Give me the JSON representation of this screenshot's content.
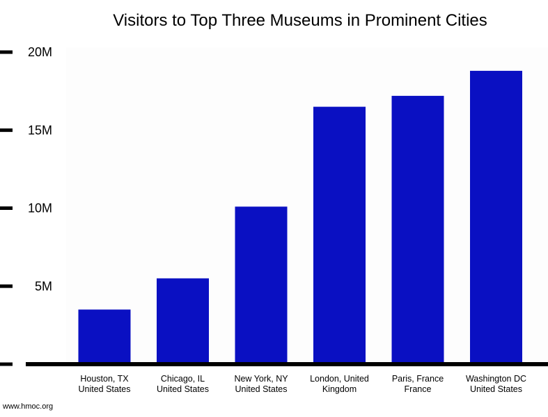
{
  "chart_data": {
    "type": "bar",
    "title": "Visitors to Top Three Museums in Prominent Cities",
    "categories": [
      [
        "Houston, TX",
        "United States"
      ],
      [
        "Chicago, IL",
        "United States"
      ],
      [
        "New York, NY",
        "United States"
      ],
      [
        "London, United",
        "Kingdom"
      ],
      [
        "Paris, France",
        "France"
      ],
      [
        "Washington DC",
        "United States"
      ]
    ],
    "values": [
      3500000,
      5500000,
      10100000,
      16500000,
      17200000,
      18800000
    ],
    "ylim": [
      0,
      20000000
    ],
    "yticks": [
      {
        "value": 5000000,
        "label": "5M"
      },
      {
        "value": 10000000,
        "label": "10M"
      },
      {
        "value": 15000000,
        "label": "15M"
      },
      {
        "value": 20000000,
        "label": "20M"
      }
    ],
    "xlabel": "",
    "ylabel": "",
    "grid": false,
    "legend": "none",
    "bar_color": "#0a10c2",
    "axis_color": "#000000"
  },
  "source": "www.hmoc.org"
}
